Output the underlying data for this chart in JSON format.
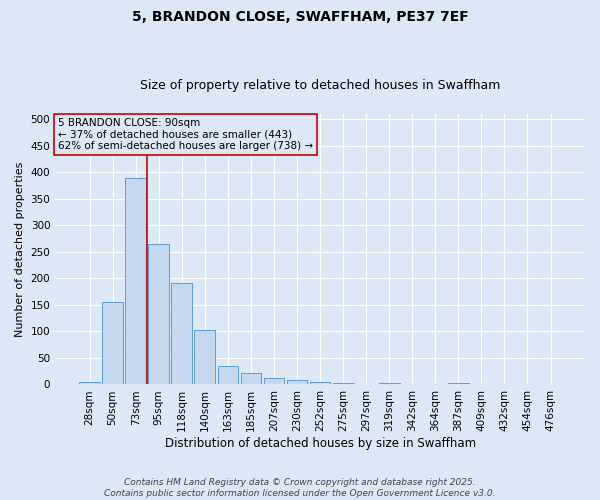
{
  "title1": "5, BRANDON CLOSE, SWAFFHAM, PE37 7EF",
  "title2": "Size of property relative to detached houses in Swaffham",
  "xlabel": "Distribution of detached houses by size in Swaffham",
  "ylabel": "Number of detached properties",
  "bar_labels": [
    "28sqm",
    "50sqm",
    "73sqm",
    "95sqm",
    "118sqm",
    "140sqm",
    "163sqm",
    "185sqm",
    "207sqm",
    "230sqm",
    "252sqm",
    "275sqm",
    "297sqm",
    "319sqm",
    "342sqm",
    "364sqm",
    "387sqm",
    "409sqm",
    "432sqm",
    "454sqm",
    "476sqm"
  ],
  "bar_values": [
    5,
    155,
    390,
    265,
    192,
    103,
    35,
    21,
    12,
    9,
    5,
    3,
    0,
    2,
    0,
    0,
    3,
    0,
    0,
    0,
    0
  ],
  "bar_color": "#c5d8ee",
  "bar_edgecolor": "#5b9bd5",
  "bg_color": "#dce8f5",
  "grid_color": "#ffffff",
  "annotation_box_text": "5 BRANDON CLOSE: 90sqm\n← 37% of detached houses are smaller (443)\n62% of semi-detached houses are larger (738) →",
  "annotation_box_color": "#cc0000",
  "vline_color": "#cc0000",
  "ylim": [
    0,
    510
  ],
  "yticks": [
    0,
    50,
    100,
    150,
    200,
    250,
    300,
    350,
    400,
    450,
    500
  ],
  "footer_text": "Contains HM Land Registry data © Crown copyright and database right 2025.\nContains public sector information licensed under the Open Government Licence v3.0.",
  "title1_fontsize": 10,
  "title2_fontsize": 9,
  "xlabel_fontsize": 8.5,
  "ylabel_fontsize": 8,
  "tick_fontsize": 7.5,
  "annotation_fontsize": 7.5,
  "footer_fontsize": 6.5
}
